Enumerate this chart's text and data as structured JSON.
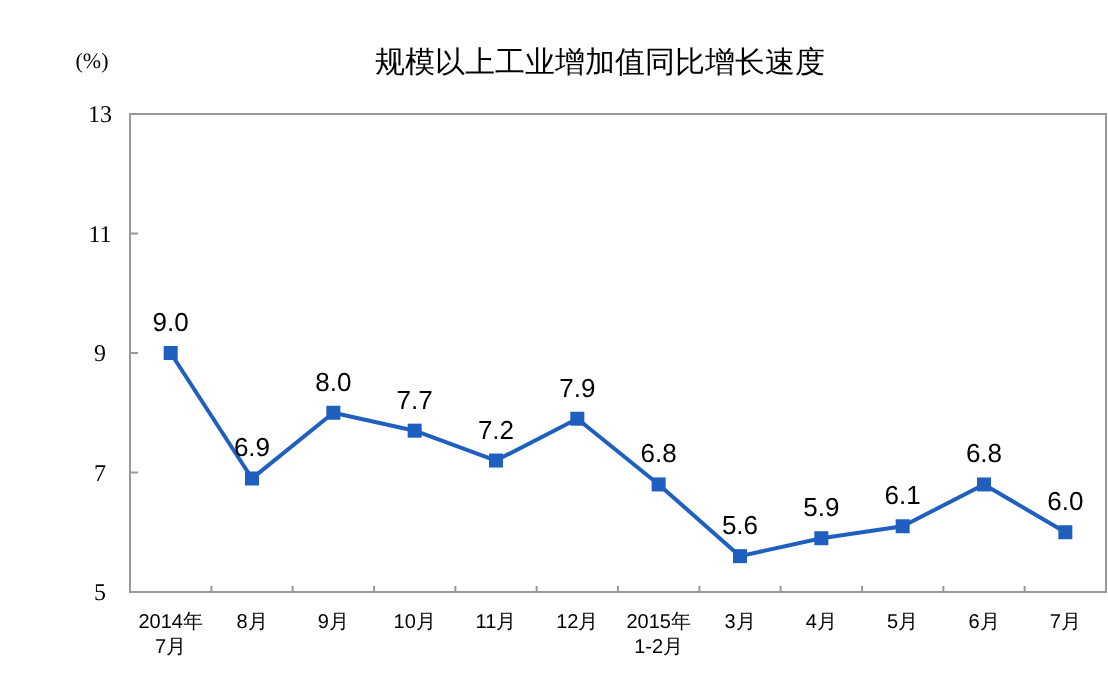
{
  "chart_data": {
    "type": "line",
    "title": "规模以上工业增加值同比增长速度",
    "ylabel": "(%)",
    "categories": [
      "2014年\n7月",
      "8月",
      "9月",
      "10月",
      "11月",
      "12月",
      "2015年\n1-2月",
      "3月",
      "4月",
      "5月",
      "6月",
      "7月"
    ],
    "series": [
      {
        "color": "#1f5fbf",
        "values": [
          9.0,
          6.9,
          8.0,
          7.7,
          7.2,
          7.9,
          6.8,
          5.6,
          5.9,
          6.1,
          6.8,
          6.0
        ],
        "value_labels": [
          "9.0",
          "6.9",
          "8.0",
          "7.7",
          "7.2",
          "7.9",
          "6.8",
          "5.6",
          "5.9",
          "6.1",
          "6.8",
          "6.0"
        ]
      }
    ],
    "ylim": [
      5,
      13
    ],
    "yticks": [
      5,
      7,
      9,
      11,
      13
    ],
    "marker": "square",
    "line_style": "solid",
    "grid": false
  }
}
